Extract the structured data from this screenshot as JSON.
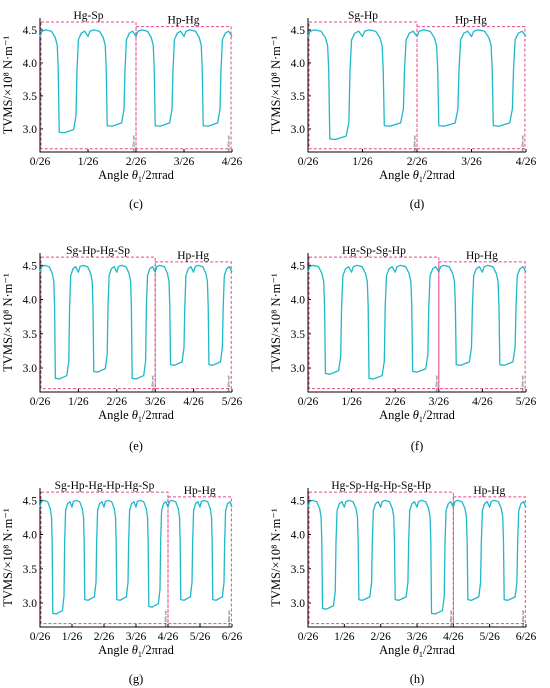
{
  "chart_data": [
    {
      "type": "line",
      "panel_label": "(c)",
      "xlabel_prefix": "Angle ",
      "xlabel_theta": "θ",
      "xlabel_sub": "1",
      "xlabel_suffix": "/2πrad",
      "ylabel": "TVMS/×10⁸ N·m⁻¹",
      "xlim": [
        0,
        4
      ],
      "ylim": [
        2.65,
        4.68
      ],
      "yticks": [
        3.0,
        3.5,
        4.0,
        4.5
      ],
      "x_tick_labels": [
        "0/26",
        "1/26",
        "2/26",
        "3/26",
        "4/26"
      ],
      "regions": [
        {
          "label": "Hg-Sp",
          "x": [
            0,
            2
          ],
          "y": [
            2.7,
            4.62
          ]
        },
        {
          "label": "Hp-Hg",
          "x": [
            2,
            3.98
          ],
          "y": [
            2.7,
            4.55
          ]
        }
      ],
      "boundary_note": "the 26th rad",
      "series": [
        {
          "segments": [
            {
              "low": 2.95,
              "high": 4.5
            },
            {
              "low": 3.05,
              "high": 4.5
            },
            {
              "low": 3.05,
              "high": 4.5
            },
            {
              "low": 3.05,
              "high": 4.5
            }
          ]
        }
      ]
    },
    {
      "type": "line",
      "panel_label": "(d)",
      "xlabel_prefix": "Angle ",
      "xlabel_theta": "θ",
      "xlabel_sub": "1",
      "xlabel_suffix": "/2πrad",
      "ylabel": "TVMS/×10⁸ N·m⁻¹",
      "xlim": [
        0,
        4
      ],
      "ylim": [
        2.65,
        4.68
      ],
      "yticks": [
        3.0,
        3.5,
        4.0,
        4.5
      ],
      "x_tick_labels": [
        "0/26",
        "1/26",
        "2/26",
        "3/26",
        "4/26"
      ],
      "regions": [
        {
          "label": "Sg-Hp",
          "x": [
            0,
            2
          ],
          "y": [
            2.7,
            4.62
          ]
        },
        {
          "label": "Hp-Hg",
          "x": [
            2,
            3.98
          ],
          "y": [
            2.7,
            4.55
          ]
        }
      ],
      "boundary_note": "the 26th rad",
      "series": [
        {
          "segments": [
            {
              "low": 2.85,
              "high": 4.5
            },
            {
              "low": 3.05,
              "high": 4.5
            },
            {
              "low": 3.05,
              "high": 4.5
            },
            {
              "low": 3.05,
              "high": 4.5
            }
          ]
        }
      ]
    },
    {
      "type": "line",
      "panel_label": "(e)",
      "xlabel_prefix": "Angle ",
      "xlabel_theta": "θ",
      "xlabel_sub": "1",
      "xlabel_suffix": "/2πrad",
      "ylabel": "TVMS/×10⁸ N·m⁻¹",
      "xlim": [
        0,
        5
      ],
      "ylim": [
        2.65,
        4.68
      ],
      "yticks": [
        3.0,
        3.5,
        4.0,
        4.5
      ],
      "x_tick_labels": [
        "0/26",
        "1/26",
        "2/26",
        "3/26",
        "4/26",
        "5/26"
      ],
      "regions": [
        {
          "label": "Sg-Hp-Hg-Sp",
          "x": [
            0,
            3
          ],
          "y": [
            2.7,
            4.62
          ]
        },
        {
          "label": "Hp-Hg",
          "x": [
            3,
            4.98
          ],
          "y": [
            2.7,
            4.55
          ]
        }
      ],
      "boundary_note": "the 26th rad",
      "series": [
        {
          "segments": [
            {
              "low": 2.85,
              "high": 4.5
            },
            {
              "low": 2.95,
              "high": 4.5
            },
            {
              "low": 2.85,
              "high": 4.5
            },
            {
              "low": 3.05,
              "high": 4.5
            },
            {
              "low": 3.05,
              "high": 4.5
            }
          ]
        }
      ]
    },
    {
      "type": "line",
      "panel_label": "(f)",
      "xlabel_prefix": "Angle ",
      "xlabel_theta": "θ",
      "xlabel_sub": "1",
      "xlabel_suffix": "/2πrad",
      "ylabel": "TVMS/×10⁸ N·m⁻¹",
      "xlim": [
        0,
        5
      ],
      "ylim": [
        2.65,
        4.68
      ],
      "yticks": [
        3.0,
        3.5,
        4.0,
        4.5
      ],
      "x_tick_labels": [
        "0/26",
        "1/26",
        "2/26",
        "3/26",
        "4/26",
        "5/26"
      ],
      "regions": [
        {
          "label": "Hg-Sp-Sg-Hp",
          "x": [
            0,
            3
          ],
          "y": [
            2.7,
            4.62
          ]
        },
        {
          "label": "Hp-Hg",
          "x": [
            3,
            4.98
          ],
          "y": [
            2.7,
            4.55
          ]
        }
      ],
      "boundary_note": "the 26th rad",
      "series": [
        {
          "segments": [
            {
              "low": 2.92,
              "high": 4.5
            },
            {
              "low": 2.85,
              "high": 4.5
            },
            {
              "low": 2.95,
              "high": 4.5
            },
            {
              "low": 3.05,
              "high": 4.5
            },
            {
              "low": 3.05,
              "high": 4.5
            }
          ]
        }
      ]
    },
    {
      "type": "line",
      "panel_label": "(g)",
      "xlabel_prefix": "Angle ",
      "xlabel_theta": "θ",
      "xlabel_sub": "1",
      "xlabel_suffix": "/2πrad",
      "ylabel": "TVMS/×10⁸ N·m⁻¹",
      "xlim": [
        0,
        6
      ],
      "ylim": [
        2.65,
        4.68
      ],
      "yticks": [
        3.0,
        3.5,
        4.0,
        4.5
      ],
      "x_tick_labels": [
        "0/26",
        "1/26",
        "2/26",
        "3/26",
        "4/26",
        "5/26",
        "6/26"
      ],
      "regions": [
        {
          "label": "Sg-Hp-Hg-Hp-Hg-Sp",
          "x": [
            0,
            4
          ],
          "y": [
            2.7,
            4.62
          ]
        },
        {
          "label": "Hp-Hg",
          "x": [
            4,
            5.98
          ],
          "y": [
            2.7,
            4.55
          ]
        }
      ],
      "boundary_note": "the 26th rad",
      "series": [
        {
          "segments": [
            {
              "low": 2.85,
              "high": 4.5
            },
            {
              "low": 3.05,
              "high": 4.5
            },
            {
              "low": 3.05,
              "high": 4.5
            },
            {
              "low": 2.95,
              "high": 4.5
            },
            {
              "low": 3.05,
              "high": 4.5
            },
            {
              "low": 3.05,
              "high": 4.5
            }
          ]
        }
      ]
    },
    {
      "type": "line",
      "panel_label": "(h)",
      "xlabel_prefix": "Angle ",
      "xlabel_theta": "θ",
      "xlabel_sub": "1",
      "xlabel_suffix": "/2πrad",
      "ylabel": "TVMS/×10⁸ N·m⁻¹",
      "xlim": [
        0,
        6
      ],
      "ylim": [
        2.65,
        4.68
      ],
      "yticks": [
        3.0,
        3.5,
        4.0,
        4.5
      ],
      "x_tick_labels": [
        "0/26",
        "1/26",
        "2/26",
        "3/26",
        "4/26",
        "5/26",
        "6/26"
      ],
      "regions": [
        {
          "label": "Hg-Sp-Hg-Hp-Sg-Hp",
          "x": [
            0,
            4
          ],
          "y": [
            2.7,
            4.62
          ]
        },
        {
          "label": "Hp-Hg",
          "x": [
            4,
            5.98
          ],
          "y": [
            2.7,
            4.55
          ]
        }
      ],
      "boundary_note": "the 26th rad",
      "series": [
        {
          "segments": [
            {
              "low": 2.92,
              "high": 4.5
            },
            {
              "low": 3.05,
              "high": 4.5
            },
            {
              "low": 3.05,
              "high": 4.5
            },
            {
              "low": 2.85,
              "high": 4.5
            },
            {
              "low": 3.05,
              "high": 4.5
            },
            {
              "low": 3.05,
              "high": 4.5
            }
          ]
        }
      ]
    }
  ]
}
